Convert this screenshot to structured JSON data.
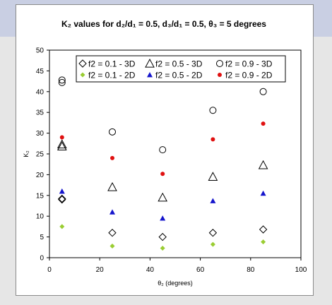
{
  "chart_data": {
    "type": "scatter",
    "title": "K₂ values for d₂/d₁ = 0.5, d₃/d₁ = 0.5, θ₃ = 5 degrees",
    "xlabel": "θ₂ (degrees)",
    "ylabel": "K₂",
    "xlim": [
      0,
      100
    ],
    "ylim": [
      0,
      50
    ],
    "x_ticks": [
      0,
      20,
      40,
      60,
      80,
      100
    ],
    "y_ticks": [
      0,
      5,
      10,
      15,
      20,
      25,
      30,
      35,
      40,
      45,
      50
    ],
    "grid": false,
    "legend_position": "top",
    "series": [
      {
        "name": "f2 = 0.1 - 3D",
        "marker": "diamond-open",
        "color": "#000000",
        "points": [
          [
            5,
            14.2
          ],
          [
            5,
            14.0
          ],
          [
            25,
            6.0
          ],
          [
            45,
            5.0
          ],
          [
            65,
            6.0
          ],
          [
            85,
            6.8
          ]
        ]
      },
      {
        "name": "f2 = 0.5 - 3D",
        "marker": "triangle-open",
        "color": "#000000",
        "points": [
          [
            5,
            27.3
          ],
          [
            5,
            26.8
          ],
          [
            25,
            17.0
          ],
          [
            45,
            14.5
          ],
          [
            65,
            19.5
          ],
          [
            85,
            22.3
          ]
        ]
      },
      {
        "name": "f2 = 0.9 - 3D",
        "marker": "circle-open",
        "color": "#000000",
        "points": [
          [
            5,
            42.8
          ],
          [
            5,
            42.2
          ],
          [
            25,
            30.3
          ],
          [
            45,
            26.0
          ],
          [
            65,
            35.5
          ],
          [
            85,
            40.0
          ]
        ]
      },
      {
        "name": "f2 = 0.1 - 2D",
        "marker": "diamond-filled",
        "color": "#9acd32",
        "points": [
          [
            5,
            7.5
          ],
          [
            25,
            2.8
          ],
          [
            45,
            2.3
          ],
          [
            65,
            3.2
          ],
          [
            85,
            3.8
          ]
        ]
      },
      {
        "name": "f2 = 0.5 - 2D",
        "marker": "triangle-filled",
        "color": "#1515cc",
        "points": [
          [
            5,
            16.0
          ],
          [
            25,
            11.0
          ],
          [
            45,
            9.5
          ],
          [
            65,
            13.7
          ],
          [
            85,
            15.5
          ]
        ]
      },
      {
        "name": "f2 = 0.9 - 2D",
        "marker": "circle-filled",
        "color": "#e01010",
        "points": [
          [
            5,
            29.0
          ],
          [
            25,
            24.0
          ],
          [
            45,
            20.2
          ],
          [
            65,
            28.5
          ],
          [
            85,
            32.3
          ]
        ]
      }
    ]
  }
}
